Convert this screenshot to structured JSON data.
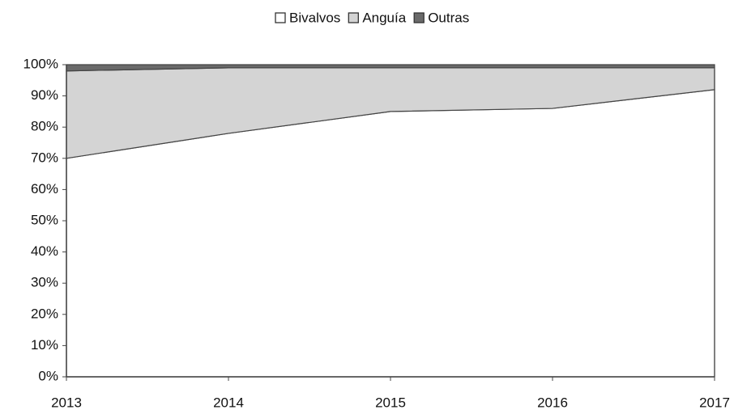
{
  "chart_data": {
    "type": "stacked_area",
    "categories": [
      "2013",
      "2014",
      "2015",
      "2016",
      "2017"
    ],
    "series": [
      {
        "name": "Bivalvos",
        "color": "#ffffff",
        "values": [
          70,
          78,
          85,
          86,
          92
        ]
      },
      {
        "name": "Anguía",
        "color": "#d4d4d4",
        "values": [
          28,
          21,
          14,
          13,
          7
        ]
      },
      {
        "name": "Outras",
        "color": "#6a6a6a",
        "values": [
          2,
          1,
          1,
          1,
          1
        ]
      }
    ],
    "ylim": [
      0,
      100
    ],
    "yticks": [
      {
        "value": 0,
        "label": "0%"
      },
      {
        "value": 10,
        "label": "10%"
      },
      {
        "value": 20,
        "label": "20%"
      },
      {
        "value": 30,
        "label": "30%"
      },
      {
        "value": 40,
        "label": "40%"
      },
      {
        "value": 50,
        "label": "50%"
      },
      {
        "value": 60,
        "label": "60%"
      },
      {
        "value": 70,
        "label": "70%"
      },
      {
        "value": 80,
        "label": "80%"
      },
      {
        "value": 90,
        "label": "90%"
      },
      {
        "value": 100,
        "label": "100%"
      }
    ],
    "legend": "top"
  }
}
